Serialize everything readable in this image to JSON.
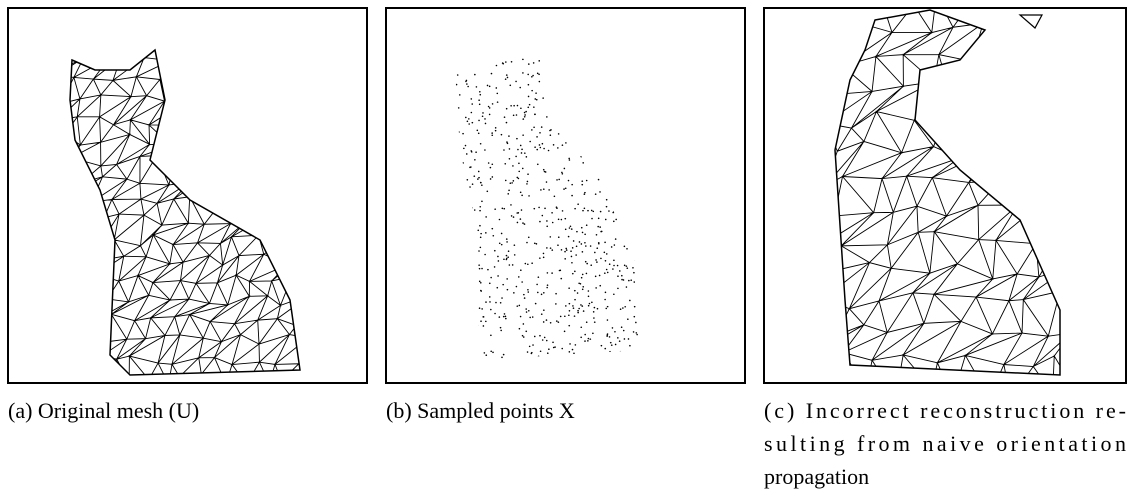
{
  "figure": {
    "panels": [
      {
        "caption_lines": [
          "(a) Original mesh (U)"
        ]
      },
      {
        "caption_lines": [
          "(b) Sampled points X"
        ]
      },
      {
        "caption_lines": [
          "(c) Incorrect reconstruction re-",
          "sulting from naive orientation",
          "propagation"
        ]
      }
    ]
  }
}
